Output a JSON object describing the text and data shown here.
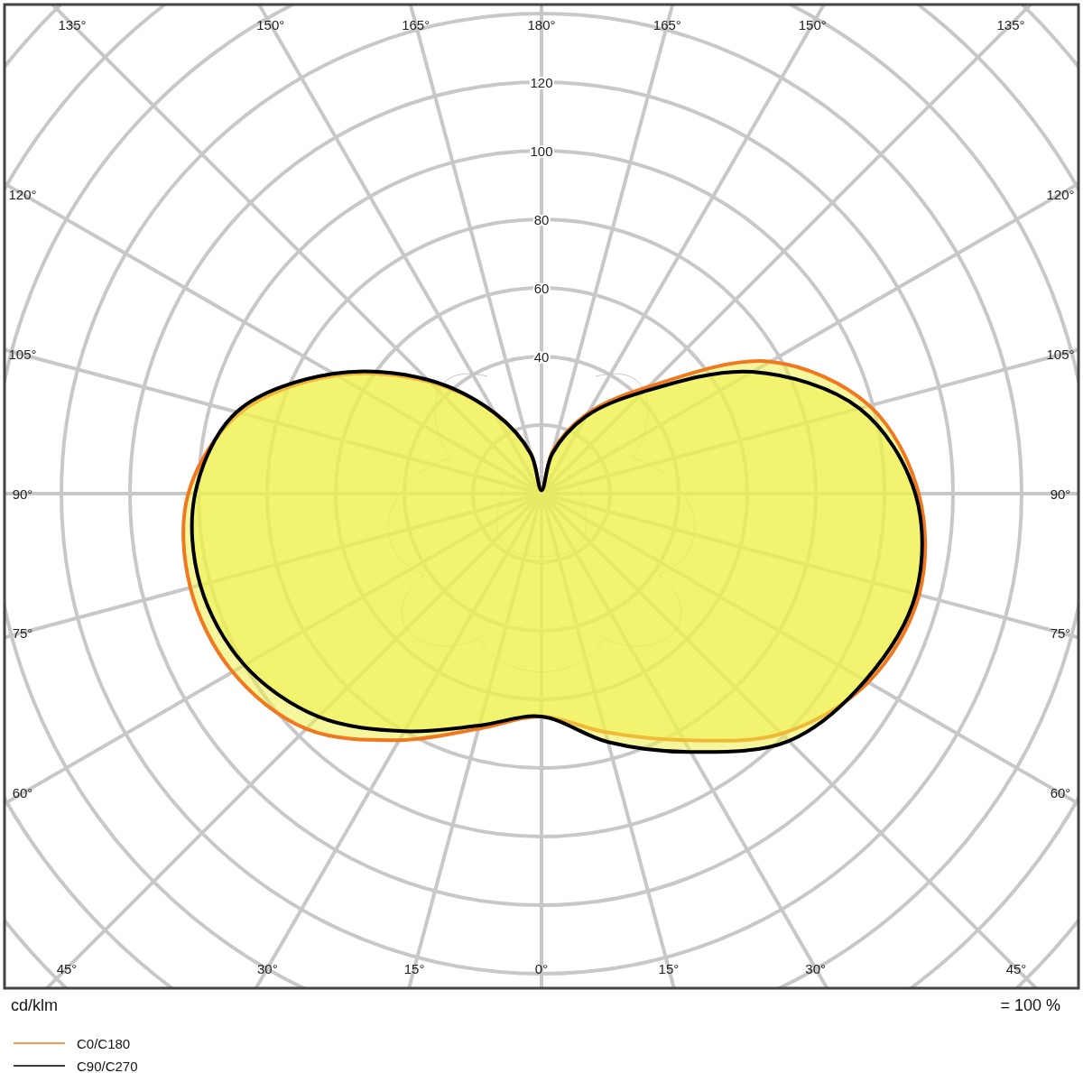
{
  "chart_data": {
    "type": "radar",
    "ylabel": "cd/klm",
    "annotations": [
      "= 100 %"
    ],
    "categories": [
      "180°",
      "165°",
      "150°",
      "135°",
      "120°",
      "105°",
      "90°",
      "75°",
      "60°",
      "45°",
      "30°",
      "15°",
      "0°",
      "15°",
      "30°",
      "45°",
      "60°",
      "75°",
      "90°",
      "105°",
      "120°",
      "135°",
      "150°",
      "165°"
    ],
    "series": [
      {
        "name": "C0/C180",
        "color": "#f07820",
        "values": [
          1,
          13,
          27,
          44,
          77,
          99,
          110,
          114,
          110,
          99,
          83,
          72,
          65,
          71,
          83,
          97,
          104,
          106,
          103,
          91,
          69,
          46,
          27,
          12
        ]
      },
      {
        "name": "C90/C270",
        "color": "#000000",
        "values": [
          1,
          12,
          26,
          42,
          71,
          96,
          109,
          113,
          109,
          102,
          87,
          75,
          65,
          70,
          80,
          92,
          100,
          103,
          101,
          92,
          70,
          47,
          27,
          12
        ]
      }
    ],
    "ylim": [
      0,
      200
    ],
    "yticks": [
      40,
      60,
      80,
      100,
      120
    ],
    "grid": true,
    "legend": "bottom left"
  }
}
